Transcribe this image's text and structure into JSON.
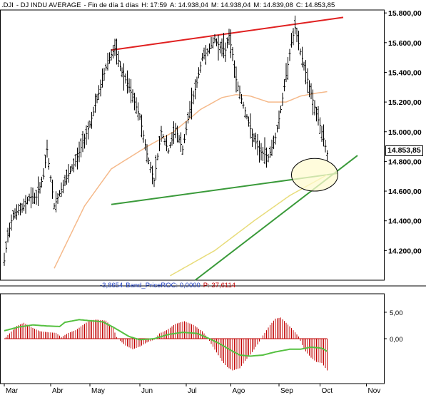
{
  "header": {
    "symbol": ".DJI",
    "name": "- DJ INDU AVERAGE",
    "period": "- Fin de día 1 días",
    "high": "H: 17:59",
    "open": "A: 14.938,04",
    "max": "M: 14.938,04",
    "min": "M: 14.839,08",
    "close": "C: 14.853,85"
  },
  "last_price_label": "14.853,85",
  "lower_panel": {
    "value_left": "-3,8654",
    "label": "Band_PriceROC: 0,0000",
    "p_label": "P: 37,6114",
    "y_ticks": [
      "5,00",
      "0,00"
    ]
  },
  "colors": {
    "price_bars": "#000000",
    "upper_trendline": "#e02020",
    "lower_trendline": "#3a9a3a",
    "long_trendline": "#3a9a3a",
    "ma_short": "#f5b98a",
    "ma_long": "#e8dc7a",
    "oscillator_bars": "#c00000",
    "oscillator_line": "#55c040",
    "ellipse_fill": "#fffbd0"
  },
  "chart_data": {
    "type": "bar",
    "x_labels": [
      "Mar",
      "Abr",
      "May",
      "Jun",
      "Jul",
      "Ago",
      "Sep",
      "Oct",
      "Nov"
    ],
    "y_ticks": [
      "15.800,00",
      "15.600,00",
      "15.400,00",
      "15.200,00",
      "15.000,00",
      "14.800,00",
      "14.600,00",
      "14.400,00",
      "14.200,00"
    ],
    "y_tick_values": [
      15800,
      15600,
      15400,
      15200,
      15000,
      14800,
      14600,
      14400,
      14200
    ],
    "ylim": [
      14000,
      15820
    ],
    "price_anchors": [
      [
        0,
        14130
      ],
      [
        2,
        14300
      ],
      [
        5,
        14450
      ],
      [
        10,
        14480
      ],
      [
        14,
        14560
      ],
      [
        18,
        14560
      ],
      [
        22,
        14700
      ],
      [
        24,
        14880
      ],
      [
        28,
        14500
      ],
      [
        33,
        14640
      ],
      [
        40,
        14800
      ],
      [
        48,
        15050
      ],
      [
        54,
        15300
      ],
      [
        58,
        15480
      ],
      [
        62,
        15560
      ],
      [
        66,
        15400
      ],
      [
        70,
        15300
      ],
      [
        76,
        15100
      ],
      [
        80,
        14850
      ],
      [
        84,
        14670
      ],
      [
        88,
        15000
      ],
      [
        92,
        14870
      ],
      [
        96,
        15020
      ],
      [
        100,
        14880
      ],
      [
        104,
        15150
      ],
      [
        108,
        15330
      ],
      [
        111,
        15500
      ],
      [
        115,
        15560
      ],
      [
        118,
        15620
      ],
      [
        121,
        15570
      ],
      [
        124,
        15550
      ],
      [
        126,
        15650
      ],
      [
        128,
        15520
      ],
      [
        130,
        15350
      ],
      [
        133,
        15220
      ],
      [
        136,
        15100
      ],
      [
        139,
        14980
      ],
      [
        143,
        14870
      ],
      [
        148,
        14830
      ],
      [
        152,
        14960
      ],
      [
        155,
        15150
      ],
      [
        158,
        15380
      ],
      [
        161,
        15600
      ],
      [
        163,
        15700
      ],
      [
        166,
        15540
      ],
      [
        169,
        15400
      ],
      [
        172,
        15260
      ],
      [
        175,
        15120
      ],
      [
        178,
        15000
      ],
      [
        181,
        14853
      ]
    ],
    "ma_short_anchors": [
      [
        28,
        14080
      ],
      [
        45,
        14500
      ],
      [
        60,
        14750
      ],
      [
        80,
        14900
      ],
      [
        95,
        15000
      ],
      [
        110,
        15150
      ],
      [
        122,
        15230
      ],
      [
        130,
        15250
      ],
      [
        138,
        15240
      ],
      [
        148,
        15200
      ],
      [
        158,
        15200
      ],
      [
        166,
        15240
      ],
      [
        175,
        15260
      ],
      [
        181,
        15270
      ]
    ],
    "ma_long_anchors": [
      [
        93,
        14030
      ],
      [
        118,
        14200
      ],
      [
        140,
        14400
      ],
      [
        160,
        14570
      ],
      [
        181,
        14710
      ]
    ],
    "upper_trendline": [
      [
        60,
        15550
      ],
      [
        190,
        15770
      ]
    ],
    "lower_trendline": [
      [
        60,
        14510
      ],
      [
        187,
        14720
      ]
    ],
    "long_trendline": [
      [
        107,
        14000
      ],
      [
        198,
        14840
      ]
    ],
    "highlight_ellipse": {
      "center": [
        174,
        14710
      ],
      "radius_x": 13,
      "radius_y": 110
    },
    "oscillator": {
      "ylim": [
        -8.5,
        8.5
      ],
      "y_ticks": [
        5,
        0
      ],
      "bar_anchors": [
        [
          0,
          0
        ],
        [
          3,
          1
        ],
        [
          7,
          2.4
        ],
        [
          11,
          3
        ],
        [
          15,
          2.2
        ],
        [
          20,
          1.4
        ],
        [
          25,
          1.2
        ],
        [
          29,
          1.1
        ],
        [
          32,
          0.3
        ],
        [
          36,
          1.1
        ],
        [
          40,
          1.6
        ],
        [
          45,
          2.8
        ],
        [
          48,
          3.5
        ],
        [
          52,
          3.6
        ],
        [
          57,
          3.4
        ],
        [
          61,
          2
        ],
        [
          63,
          0.3
        ],
        [
          65,
          -0.4
        ],
        [
          68,
          -1.3
        ],
        [
          72,
          -2
        ],
        [
          76,
          -1.5
        ],
        [
          80,
          -0.7
        ],
        [
          84,
          -0.2
        ],
        [
          87,
          1
        ],
        [
          91,
          1.6
        ],
        [
          96,
          2.8
        ],
        [
          101,
          3.3
        ],
        [
          106,
          2.6
        ],
        [
          111,
          1.4
        ],
        [
          114,
          0.2
        ],
        [
          116,
          -1
        ],
        [
          119,
          -2.6
        ],
        [
          122,
          -4.2
        ],
        [
          125,
          -5.4
        ],
        [
          128,
          -6
        ],
        [
          132,
          -5.6
        ],
        [
          135,
          -4.2
        ],
        [
          138,
          -3
        ],
        [
          142,
          -1.1
        ],
        [
          145,
          0.6
        ],
        [
          149,
          2.6
        ],
        [
          152,
          3.8
        ],
        [
          155,
          4
        ],
        [
          158,
          3
        ],
        [
          161,
          2
        ],
        [
          165,
          0.4
        ],
        [
          168,
          -2
        ],
        [
          172,
          -3.6
        ],
        [
          175,
          -4.4
        ],
        [
          178,
          -4.6
        ],
        [
          181,
          -6
        ]
      ],
      "line_anchors": [
        [
          0,
          1.5
        ],
        [
          8,
          2.2
        ],
        [
          16,
          2.6
        ],
        [
          24,
          2.4
        ],
        [
          31,
          2.3
        ],
        [
          34,
          3.1
        ],
        [
          42,
          3.6
        ],
        [
          48,
          3.4
        ],
        [
          55,
          3.2
        ],
        [
          61,
          2.2
        ],
        [
          66,
          1.2
        ],
        [
          70,
          0.4
        ],
        [
          76,
          -0.2
        ],
        [
          84,
          0
        ],
        [
          92,
          0.8
        ],
        [
          100,
          1.2
        ],
        [
          108,
          1
        ],
        [
          115,
          0
        ],
        [
          121,
          -1
        ],
        [
          127,
          -2.2
        ],
        [
          132,
          -3.1
        ],
        [
          138,
          -3.3
        ],
        [
          145,
          -3.1
        ],
        [
          152,
          -2.5
        ],
        [
          160,
          -2
        ],
        [
          166,
          -2
        ],
        [
          172,
          -1.6
        ],
        [
          178,
          -1.8
        ],
        [
          181,
          -2.4
        ]
      ]
    }
  }
}
